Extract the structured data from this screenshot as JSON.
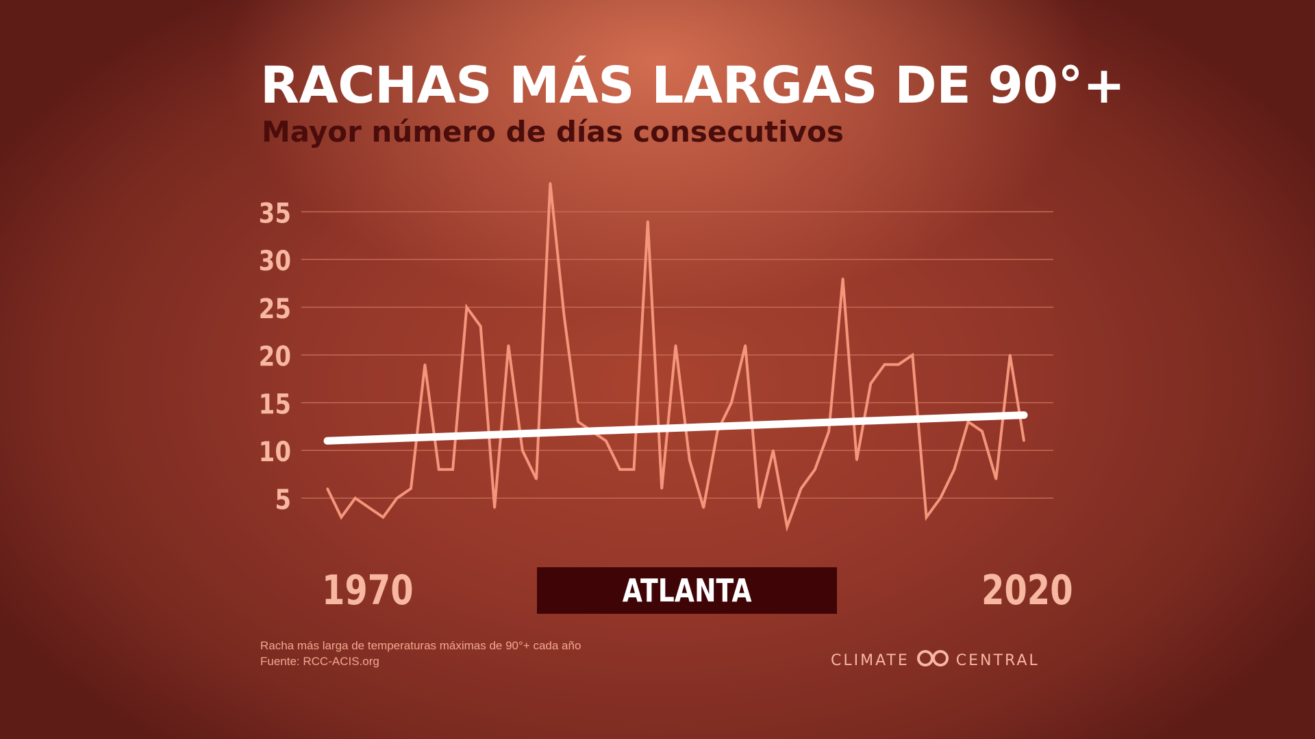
{
  "title": "RACHAS MÁS LARGAS DE 90°+",
  "subtitle": "Mayor número de días consecutivos",
  "city": "ATLANTA",
  "footnote": "Racha más larga de temperaturas máximas de 90°+ cada año",
  "source": "Fuente: RCC-ACIS.org",
  "brand": {
    "left": "CLIMATE",
    "right": "CENTRAL",
    "icon": "climate-central-logo-icon"
  },
  "colors": {
    "line": "#f4957c",
    "trend": "#ffffff",
    "grid": "#c46a55",
    "tick": "#f7b7a1",
    "city_box": "#3f0406"
  },
  "chart_data": {
    "type": "line",
    "title": "RACHAS MÁS LARGAS DE 90°+",
    "subtitle": "Mayor número de días consecutivos",
    "x_tick_labels": [
      "1970",
      "2020"
    ],
    "y_ticks": [
      5,
      10,
      15,
      20,
      25,
      30,
      35
    ],
    "ylim": [
      0,
      38
    ],
    "xlim": [
      1970,
      2020
    ],
    "grid": true,
    "series": [
      {
        "x": [
          1970,
          1971,
          1972,
          1973,
          1974,
          1975,
          1976,
          1977,
          1978,
          1979,
          1980,
          1981,
          1982,
          1983,
          1984,
          1985,
          1986,
          1987,
          1988,
          1989,
          1990,
          1991,
          1992,
          1993,
          1994,
          1995,
          1996,
          1997,
          1998,
          1999,
          2000,
          2001,
          2002,
          2003,
          2004,
          2005,
          2006,
          2007,
          2008,
          2009,
          2010,
          2011,
          2012,
          2013,
          2014,
          2015,
          2016,
          2017,
          2018,
          2019,
          2020
        ],
        "values": [
          6,
          3,
          5,
          4,
          3,
          5,
          6,
          19,
          8,
          8,
          25,
          23,
          4,
          21,
          10,
          7,
          38,
          24,
          13,
          12,
          11,
          8,
          8,
          34,
          6,
          21,
          9,
          4,
          12,
          15,
          21,
          4,
          10,
          2,
          6,
          8,
          12,
          28,
          9,
          17,
          19,
          19,
          20,
          3,
          5,
          8,
          13,
          12,
          7,
          20,
          11
        ]
      }
    ],
    "trend_line": {
      "x": [
        1970,
        2020
      ],
      "y": [
        11,
        13.7
      ]
    }
  }
}
